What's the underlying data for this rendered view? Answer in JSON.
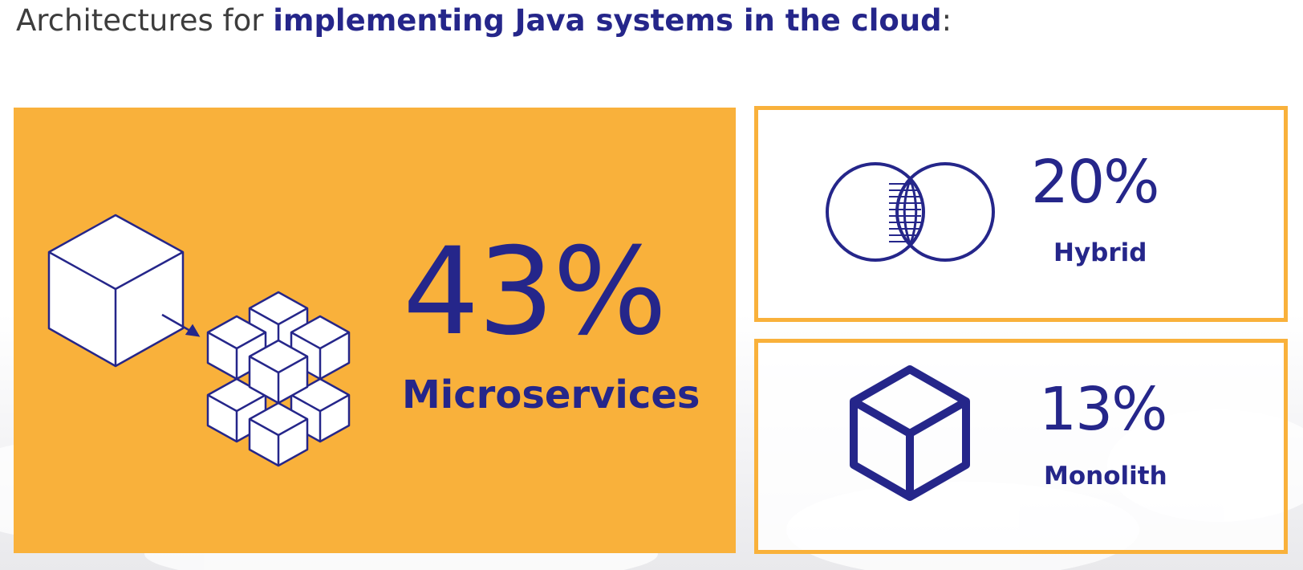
{
  "header": {
    "title_prefix": "Architectures for ",
    "title_emphasis": "implementing Java systems in the cloud",
    "title_suffix": ":"
  },
  "stats": [
    {
      "value": "43%",
      "label": "Microservices",
      "icon": "microservices-cubes-icon"
    },
    {
      "value": "20%",
      "label": "Hybrid",
      "icon": "overlapping-circles-icon"
    },
    {
      "value": "13%",
      "label": "Monolith",
      "icon": "single-cube-icon"
    }
  ],
  "colors": {
    "accent": "#f9b13b",
    "primary": "#25268a",
    "text": "#3d3d3d"
  }
}
